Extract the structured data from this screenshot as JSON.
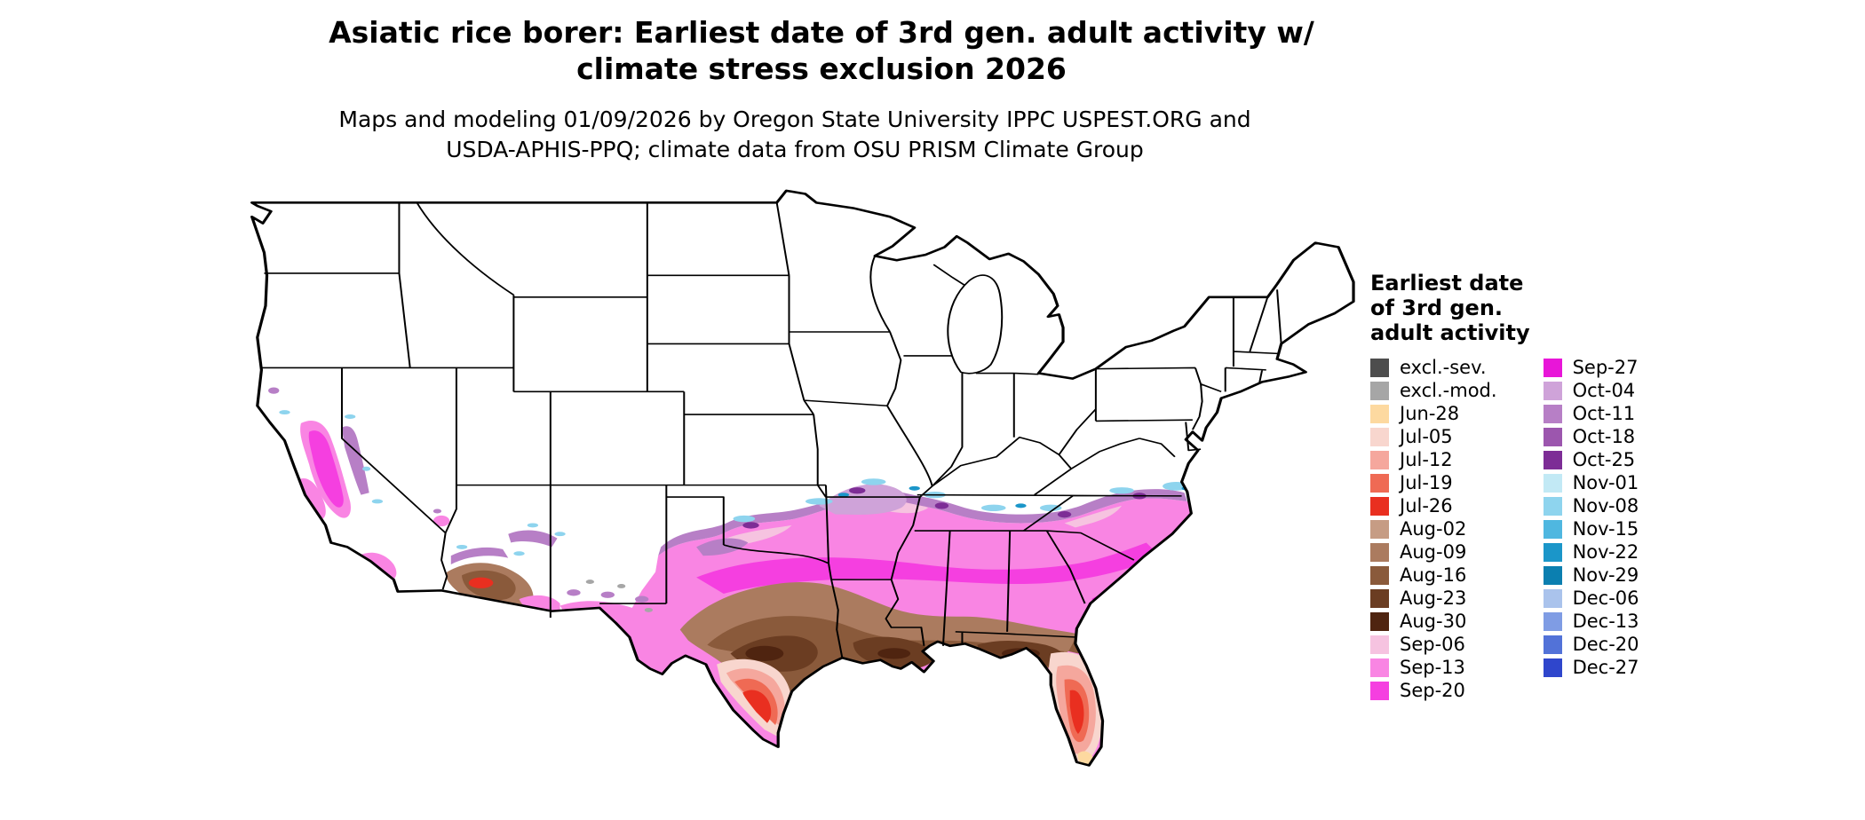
{
  "title": {
    "line1": "Asiatic rice borer: Earliest date of 3rd gen. adult activity w/",
    "line2": "climate stress exclusion 2026"
  },
  "subtitle": {
    "line1": "Maps and modeling 01/09/2026 by Oregon State University IPPC USPEST.ORG and",
    "line2": "USDA-APHIS-PPQ; climate data from OSU PRISM Climate Group"
  },
  "legend": {
    "title_lines": [
      "Earliest date",
      "of 3rd gen.",
      "adult activity"
    ],
    "columns": [
      {
        "items": [
          {
            "label": "excl.-sev.",
            "key": "excl_sev"
          },
          {
            "label": "excl.-mod.",
            "key": "excl_mod"
          },
          {
            "label": "Jun-28",
            "key": "jun28"
          },
          {
            "label": "Jul-05",
            "key": "jul05"
          },
          {
            "label": "Jul-12",
            "key": "jul12"
          },
          {
            "label": "Jul-19",
            "key": "jul19"
          },
          {
            "label": "Jul-26",
            "key": "jul26"
          },
          {
            "label": "Aug-02",
            "key": "aug02"
          },
          {
            "label": "Aug-09",
            "key": "aug09"
          },
          {
            "label": "Aug-16",
            "key": "aug16"
          },
          {
            "label": "Aug-23",
            "key": "aug23"
          },
          {
            "label": "Aug-30",
            "key": "aug30"
          },
          {
            "label": "Sep-06",
            "key": "sep06"
          },
          {
            "label": "Sep-13",
            "key": "sep13"
          },
          {
            "label": "Sep-20",
            "key": "sep20"
          }
        ]
      },
      {
        "items": [
          {
            "label": "Sep-27",
            "key": "sep27"
          },
          {
            "label": "Oct-04",
            "key": "oct04"
          },
          {
            "label": "Oct-11",
            "key": "oct11"
          },
          {
            "label": "Oct-18",
            "key": "oct18"
          },
          {
            "label": "Oct-25",
            "key": "oct25"
          },
          {
            "label": "Nov-01",
            "key": "nov01"
          },
          {
            "label": "Nov-08",
            "key": "nov08"
          },
          {
            "label": "Nov-15",
            "key": "nov15"
          },
          {
            "label": "Nov-22",
            "key": "nov22"
          },
          {
            "label": "Nov-29",
            "key": "nov29"
          },
          {
            "label": "Dec-06",
            "key": "dec06"
          },
          {
            "label": "Dec-13",
            "key": "dec13"
          },
          {
            "label": "Dec-20",
            "key": "dec20"
          },
          {
            "label": "Dec-27",
            "key": "dec27"
          }
        ]
      }
    ]
  },
  "palette": {
    "excl_sev": "#4d4d4d",
    "excl_mod": "#a6a6a6",
    "jun28": "#fdd9a0",
    "jul05": "#f8d6ce",
    "jul12": "#f5a79d",
    "jul19": "#ef6a54",
    "jul26": "#e92f20",
    "aug02": "#c69c84",
    "aug09": "#ab7b5f",
    "aug16": "#8a5a3b",
    "aug23": "#6b3d22",
    "aug30": "#4f2410",
    "sep06": "#f6c3e0",
    "sep13": "#f985e3",
    "sep20": "#f53fe0",
    "sep27": "#e816d8",
    "oct04": "#cfa3d9",
    "oct11": "#b77fc6",
    "oct18": "#9c56ae",
    "oct25": "#7d2d96",
    "nov01": "#c2e9f5",
    "nov08": "#8ed4ee",
    "nov15": "#4fb7e0",
    "nov22": "#1b96c9",
    "nov29": "#0b7fb0",
    "dec06": "#aac3ec",
    "dec13": "#7f9ce4",
    "dec20": "#5272d8",
    "dec27": "#2f46cc",
    "outline": "#000000"
  }
}
